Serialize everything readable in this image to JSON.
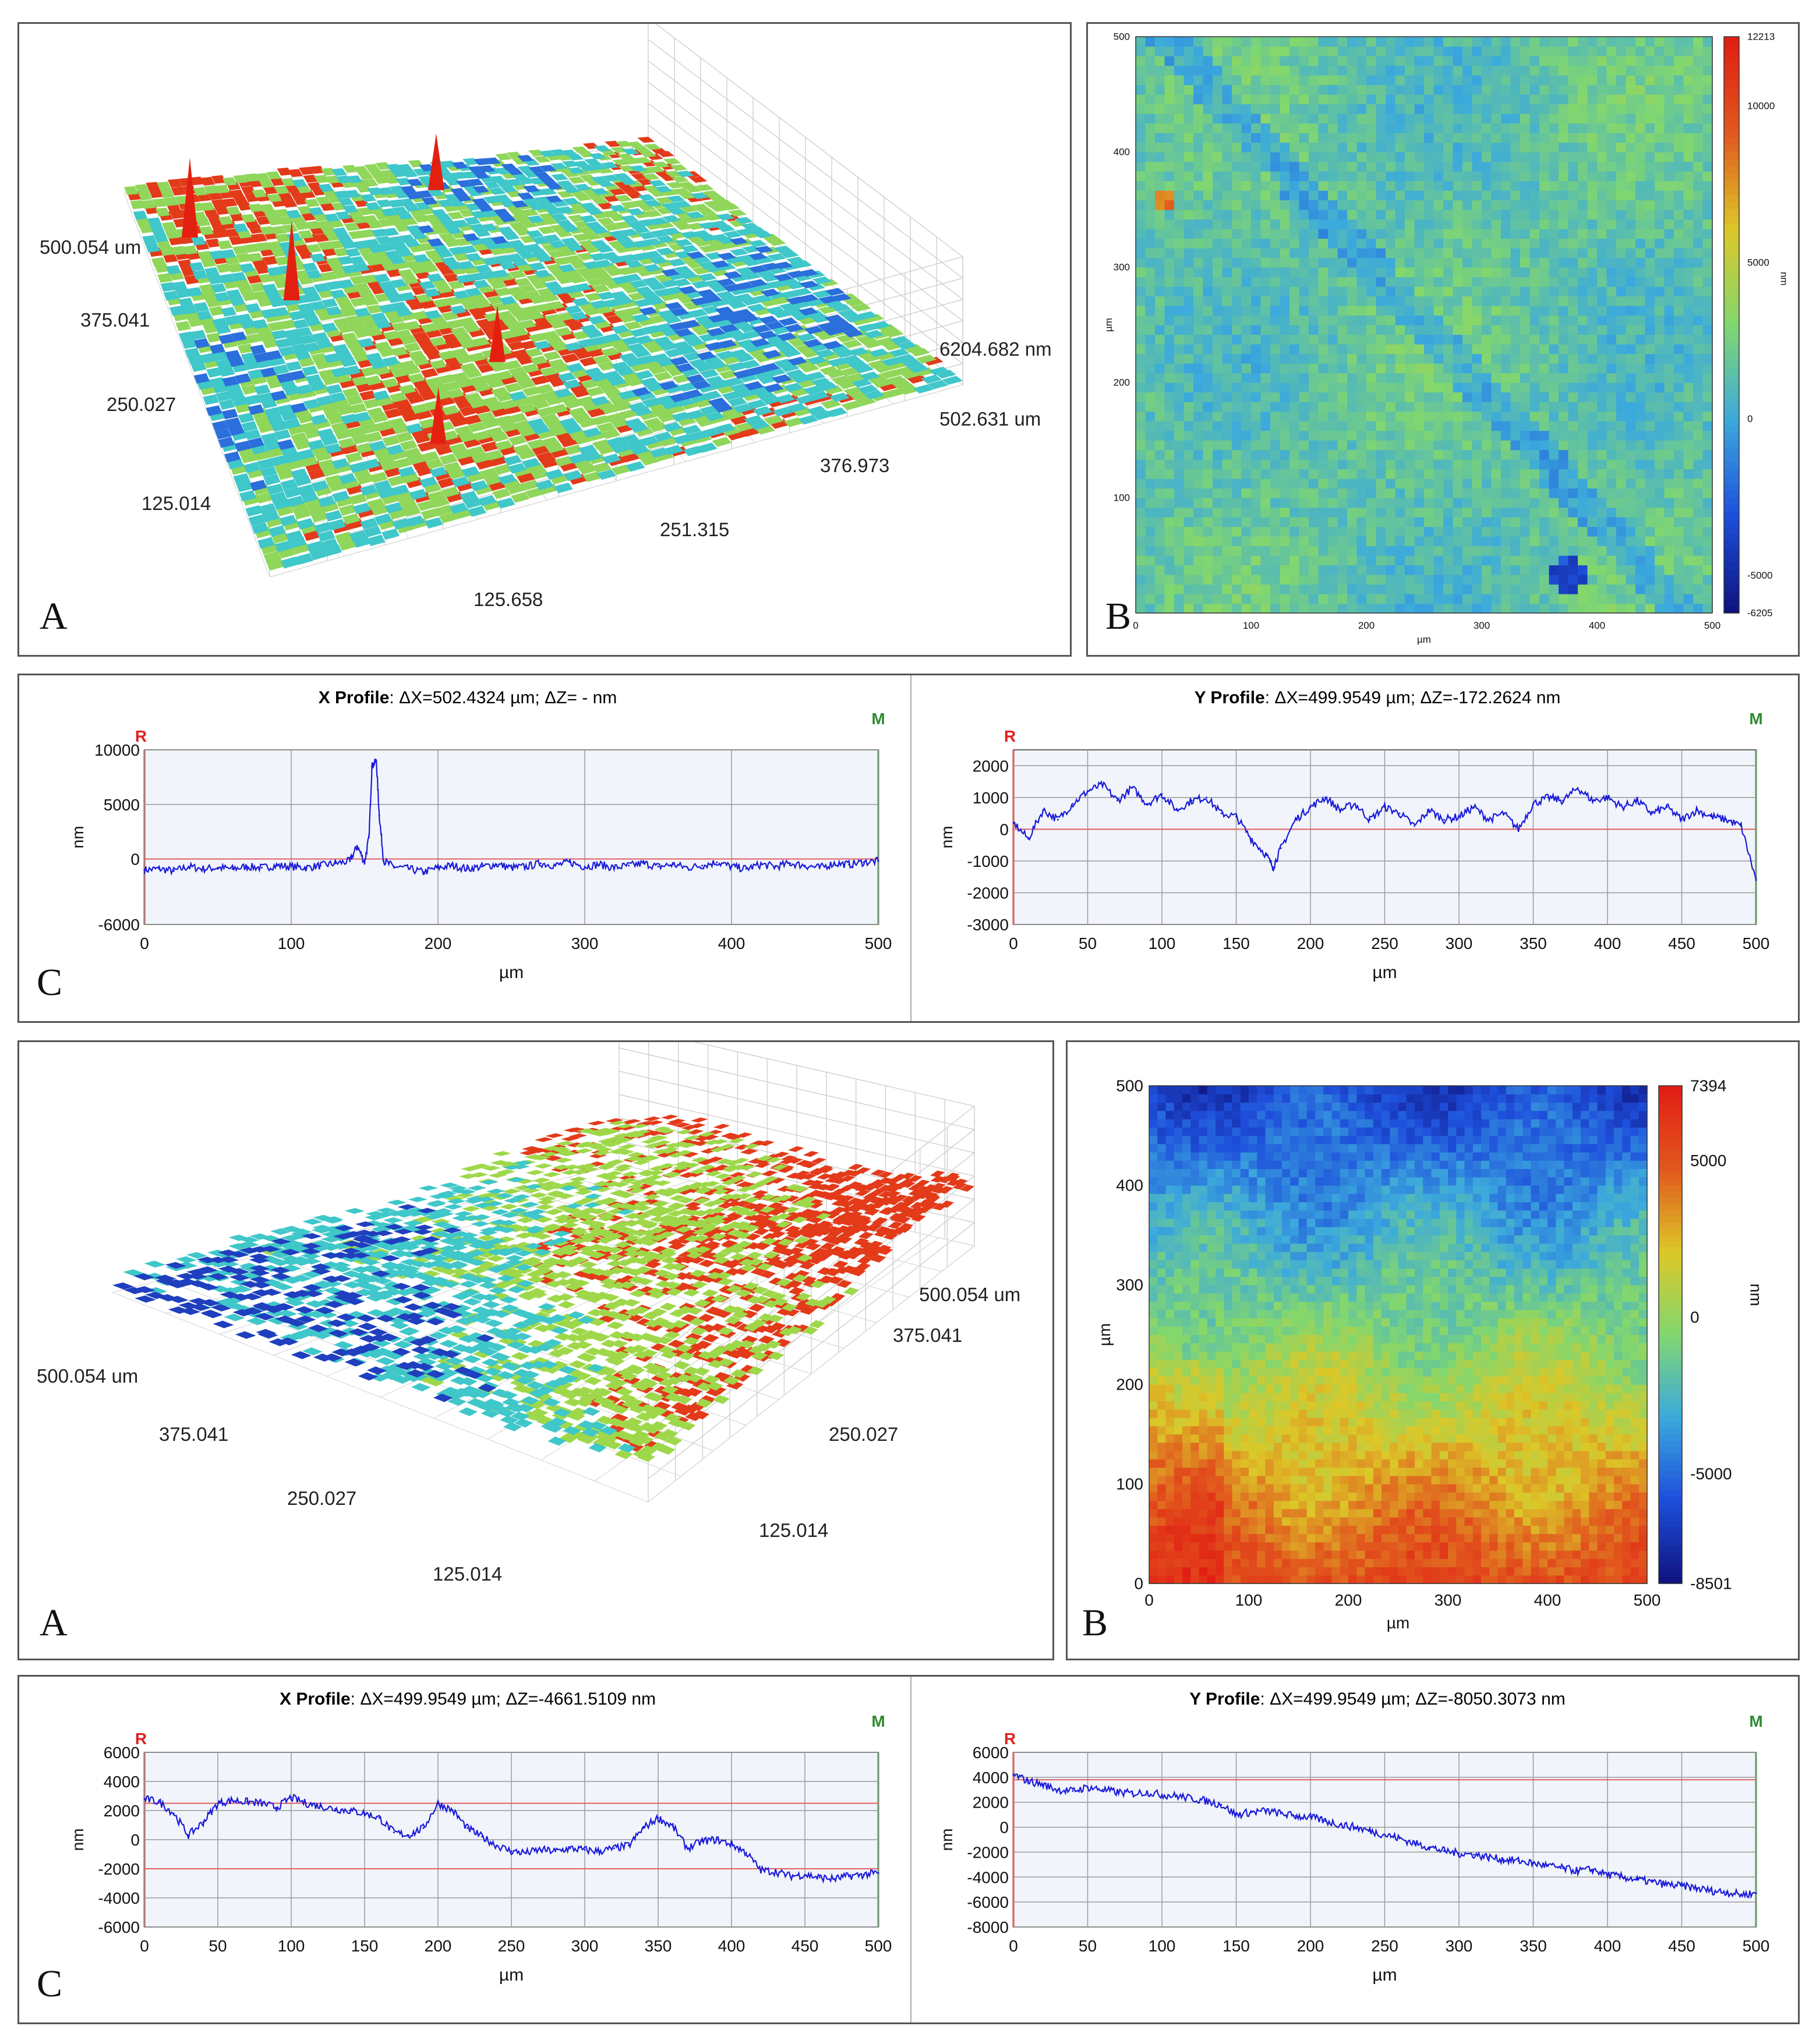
{
  "figure_letters": {
    "a": "A",
    "b": "B",
    "c": "C"
  },
  "chart_data": [
    {
      "id": "top-3d",
      "type": "surface3d",
      "x_ticks": [
        "125.658",
        "251.315",
        "376.973",
        "502.631 um"
      ],
      "y_ticks": [
        "125.014",
        "250.027",
        "375.041",
        "500.054 um"
      ],
      "z_label": "6204.682 nm",
      "colormap": [
        "#2a6fdb",
        "#3fc7c9",
        "#8fd65a",
        "#e33a1a"
      ]
    },
    {
      "id": "top-map",
      "type": "heatmap",
      "x_range": [
        0,
        500
      ],
      "y_range": [
        0,
        500
      ],
      "x_ticks": [
        "0",
        "100",
        "200",
        "300",
        "400",
        "500"
      ],
      "y_ticks": [
        "100",
        "200",
        "300",
        "400",
        "500"
      ],
      "xlabel": "µm",
      "ylabel": "µm",
      "colorbar_ticks": [
        "12213",
        "10000",
        "5000",
        "0",
        "-5000",
        "-6205"
      ],
      "colorbar_label": "nm",
      "colorbar_range": [
        -6205,
        12213
      ]
    },
    {
      "id": "top-x-profile",
      "type": "line",
      "title_bold": "X Profile",
      "title_rest": ": ΔX=502.4324 µm; ΔZ= -  nm",
      "marker_r": "R",
      "marker_m": "M",
      "xlabel": "µm",
      "ylabel": "nm",
      "x_range": [
        0,
        500
      ],
      "y_range": [
        -6000,
        10000
      ],
      "x_ticks": [
        "0",
        "100",
        "200",
        "300",
        "400",
        "500"
      ],
      "y_ticks": [
        {
          "v": 10000,
          "t": "10000"
        },
        {
          "v": 5000,
          "t": "5000"
        },
        {
          "v": 0,
          "t": "0"
        },
        {
          "v": -6000,
          "t": "-6000"
        }
      ],
      "ref_lines": [
        0
      ],
      "points": [
        [
          0,
          -1000
        ],
        [
          10,
          -900
        ],
        [
          20,
          -1100
        ],
        [
          30,
          -700
        ],
        [
          40,
          -900
        ],
        [
          50,
          -800
        ],
        [
          60,
          -900
        ],
        [
          70,
          -700
        ],
        [
          80,
          -800
        ],
        [
          90,
          -600
        ],
        [
          100,
          -700
        ],
        [
          110,
          -800
        ],
        [
          120,
          -600
        ],
        [
          130,
          -400
        ],
        [
          140,
          -200
        ],
        [
          145,
          1200
        ],
        [
          150,
          -300
        ],
        [
          153,
          2000
        ],
        [
          155,
          8500
        ],
        [
          158,
          9000
        ],
        [
          160,
          4000
        ],
        [
          163,
          -200
        ],
        [
          170,
          -700
        ],
        [
          180,
          -900
        ],
        [
          190,
          -1200
        ],
        [
          200,
          -800
        ],
        [
          210,
          -600
        ],
        [
          220,
          -900
        ],
        [
          230,
          -700
        ],
        [
          240,
          -500
        ],
        [
          250,
          -800
        ],
        [
          260,
          -700
        ],
        [
          270,
          -400
        ],
        [
          280,
          -600
        ],
        [
          290,
          -300
        ],
        [
          300,
          -700
        ],
        [
          310,
          -500
        ],
        [
          320,
          -800
        ],
        [
          330,
          -600
        ],
        [
          340,
          -400
        ],
        [
          350,
          -700
        ],
        [
          360,
          -500
        ],
        [
          370,
          -800
        ],
        [
          380,
          -600
        ],
        [
          390,
          -300
        ],
        [
          400,
          -700
        ],
        [
          410,
          -900
        ],
        [
          420,
          -500
        ],
        [
          430,
          -700
        ],
        [
          440,
          -400
        ],
        [
          450,
          -600
        ],
        [
          460,
          -800
        ],
        [
          470,
          -400
        ],
        [
          480,
          -500
        ],
        [
          490,
          -300
        ],
        [
          500,
          -200
        ]
      ]
    },
    {
      "id": "top-y-profile",
      "type": "line",
      "title_bold": "Y Profile",
      "title_rest": ": ΔX=499.9549 µm; ΔZ=-172.2624 nm",
      "marker_r": "R",
      "marker_m": "M",
      "xlabel": "µm",
      "ylabel": "nm",
      "x_range": [
        0,
        500
      ],
      "y_range": [
        -3000,
        2500
      ],
      "x_ticks": [
        "0",
        "50",
        "100",
        "150",
        "200",
        "250",
        "300",
        "350",
        "400",
        "450",
        "500"
      ],
      "y_ticks": [
        {
          "v": 2000,
          "t": "2000"
        },
        {
          "v": 1000,
          "t": "1000"
        },
        {
          "v": 0,
          "t": "0"
        },
        {
          "v": -1000,
          "t": "-1000"
        },
        {
          "v": -2000,
          "t": "-2000"
        },
        {
          "v": -3000,
          "t": "-3000"
        }
      ],
      "ref_lines": [
        0
      ],
      "points": [
        [
          0,
          200
        ],
        [
          10,
          -300
        ],
        [
          20,
          600
        ],
        [
          30,
          300
        ],
        [
          40,
          800
        ],
        [
          50,
          1200
        ],
        [
          60,
          1400
        ],
        [
          70,
          900
        ],
        [
          80,
          1300
        ],
        [
          90,
          800
        ],
        [
          100,
          1100
        ],
        [
          110,
          600
        ],
        [
          120,
          900
        ],
        [
          130,
          1000
        ],
        [
          140,
          500
        ],
        [
          150,
          400
        ],
        [
          160,
          -300
        ],
        [
          170,
          -800
        ],
        [
          175,
          -1200
        ],
        [
          180,
          -600
        ],
        [
          190,
          300
        ],
        [
          200,
          700
        ],
        [
          210,
          1000
        ],
        [
          220,
          600
        ],
        [
          230,
          800
        ],
        [
          240,
          300
        ],
        [
          250,
          700
        ],
        [
          260,
          500
        ],
        [
          270,
          100
        ],
        [
          280,
          600
        ],
        [
          290,
          300
        ],
        [
          300,
          400
        ],
        [
          310,
          700
        ],
        [
          320,
          300
        ],
        [
          330,
          500
        ],
        [
          340,
          0
        ],
        [
          350,
          800
        ],
        [
          360,
          1000
        ],
        [
          370,
          900
        ],
        [
          380,
          1300
        ],
        [
          390,
          900
        ],
        [
          400,
          1000
        ],
        [
          410,
          700
        ],
        [
          420,
          900
        ],
        [
          430,
          500
        ],
        [
          440,
          700
        ],
        [
          450,
          300
        ],
        [
          460,
          600
        ],
        [
          470,
          400
        ],
        [
          480,
          300
        ],
        [
          490,
          100
        ],
        [
          500,
          -1600
        ]
      ]
    },
    {
      "id": "bottom-3d",
      "type": "surface3d",
      "x_ticks": [
        "125.014",
        "250.027",
        "375.041",
        "500.054 um"
      ],
      "y_ticks": [
        "125.014",
        "250.027",
        "375.041",
        "500.054 um"
      ],
      "colormap": [
        "#1f3fbf",
        "#3fc7c9",
        "#9ed84a",
        "#e33a1a"
      ]
    },
    {
      "id": "bottom-map",
      "type": "heatmap",
      "x_range": [
        0,
        500
      ],
      "y_range": [
        0,
        500
      ],
      "x_ticks": [
        "0",
        "100",
        "200",
        "300",
        "400",
        "500"
      ],
      "y_ticks": [
        "0",
        "100",
        "200",
        "300",
        "400",
        "500"
      ],
      "xlabel": "µm",
      "ylabel": "µm",
      "colorbar_ticks": [
        "7394",
        "5000",
        "0",
        "-5000",
        "-8501"
      ],
      "colorbar_label": "nm",
      "colorbar_range": [
        -8501,
        7394
      ]
    },
    {
      "id": "bottom-x-profile",
      "type": "line",
      "title_bold": "X Profile",
      "title_rest": ": ΔX=499.9549 µm; ΔZ=-4661.5109 nm",
      "marker_r": "R",
      "marker_m": "M",
      "xlabel": "µm",
      "ylabel": "nm",
      "x_range": [
        0,
        500
      ],
      "y_range": [
        -6000,
        6000
      ],
      "x_ticks": [
        "0",
        "50",
        "100",
        "150",
        "200",
        "250",
        "300",
        "350",
        "400",
        "450",
        "500"
      ],
      "y_ticks": [
        {
          "v": 6000,
          "t": "6000"
        },
        {
          "v": 4000,
          "t": "4000"
        },
        {
          "v": 2000,
          "t": "2000"
        },
        {
          "v": 0,
          "t": "0"
        },
        {
          "v": -2000,
          "t": "-2000"
        },
        {
          "v": -4000,
          "t": "-4000"
        },
        {
          "v": -6000,
          "t": "-6000"
        }
      ],
      "ref_lines": [
        2500,
        -2000
      ],
      "points": [
        [
          0,
          2800
        ],
        [
          10,
          2600
        ],
        [
          20,
          1800
        ],
        [
          30,
          300
        ],
        [
          40,
          1200
        ],
        [
          50,
          2500
        ],
        [
          60,
          2700
        ],
        [
          70,
          2600
        ],
        [
          80,
          2500
        ],
        [
          90,
          2200
        ],
        [
          100,
          2900
        ],
        [
          110,
          2500
        ],
        [
          120,
          2300
        ],
        [
          130,
          2100
        ],
        [
          140,
          2000
        ],
        [
          150,
          1800
        ],
        [
          160,
          1500
        ],
        [
          170,
          500
        ],
        [
          180,
          300
        ],
        [
          190,
          800
        ],
        [
          200,
          2500
        ],
        [
          210,
          2000
        ],
        [
          220,
          800
        ],
        [
          230,
          200
        ],
        [
          240,
          -400
        ],
        [
          250,
          -800
        ],
        [
          260,
          -900
        ],
        [
          270,
          -700
        ],
        [
          280,
          -800
        ],
        [
          290,
          -600
        ],
        [
          300,
          -700
        ],
        [
          310,
          -800
        ],
        [
          320,
          -600
        ],
        [
          330,
          -400
        ],
        [
          340,
          800
        ],
        [
          350,
          1500
        ],
        [
          360,
          900
        ],
        [
          370,
          -600
        ],
        [
          380,
          -100
        ],
        [
          390,
          0
        ],
        [
          400,
          -300
        ],
        [
          410,
          -900
        ],
        [
          420,
          -2100
        ],
        [
          430,
          -2200
        ],
        [
          440,
          -2500
        ],
        [
          450,
          -2400
        ],
        [
          460,
          -2600
        ],
        [
          470,
          -2700
        ],
        [
          480,
          -2500
        ],
        [
          490,
          -2400
        ],
        [
          500,
          -2300
        ]
      ]
    },
    {
      "id": "bottom-y-profile",
      "type": "line",
      "title_bold": "Y Profile",
      "title_rest": ": ΔX=499.9549 µm; ΔZ=-8050.3073 nm",
      "marker_r": "R",
      "marker_m": "M",
      "xlabel": "µm",
      "ylabel": "nm",
      "x_range": [
        0,
        500
      ],
      "y_range": [
        -8000,
        6000
      ],
      "x_ticks": [
        "0",
        "50",
        "100",
        "150",
        "200",
        "250",
        "300",
        "350",
        "400",
        "450",
        "500"
      ],
      "y_ticks": [
        {
          "v": 6000,
          "t": "6000"
        },
        {
          "v": 4000,
          "t": "4000"
        },
        {
          "v": 2000,
          "t": "2000"
        },
        {
          "v": 0,
          "t": "0"
        },
        {
          "v": -2000,
          "t": "-2000"
        },
        {
          "v": -4000,
          "t": "-4000"
        },
        {
          "v": -6000,
          "t": "-6000"
        },
        {
          "v": -8000,
          "t": "-8000"
        }
      ],
      "ref_lines": [
        3800
      ],
      "points": [
        [
          0,
          4200
        ],
        [
          10,
          3700
        ],
        [
          20,
          3400
        ],
        [
          30,
          3000
        ],
        [
          40,
          2900
        ],
        [
          50,
          3200
        ],
        [
          60,
          3000
        ],
        [
          70,
          2800
        ],
        [
          80,
          2700
        ],
        [
          90,
          2800
        ],
        [
          100,
          2600
        ],
        [
          110,
          2500
        ],
        [
          120,
          2300
        ],
        [
          130,
          2100
        ],
        [
          140,
          1800
        ],
        [
          150,
          1000
        ],
        [
          160,
          1200
        ],
        [
          170,
          1300
        ],
        [
          180,
          1100
        ],
        [
          190,
          900
        ],
        [
          200,
          800
        ],
        [
          210,
          500
        ],
        [
          220,
          200
        ],
        [
          230,
          0
        ],
        [
          240,
          -300
        ],
        [
          250,
          -600
        ],
        [
          260,
          -900
        ],
        [
          270,
          -1300
        ],
        [
          280,
          -1600
        ],
        [
          290,
          -1900
        ],
        [
          300,
          -2100
        ],
        [
          310,
          -2200
        ],
        [
          320,
          -2400
        ],
        [
          330,
          -2600
        ],
        [
          340,
          -2700
        ],
        [
          350,
          -2900
        ],
        [
          360,
          -3100
        ],
        [
          370,
          -3300
        ],
        [
          380,
          -3500
        ],
        [
          390,
          -3400
        ],
        [
          400,
          -3800
        ],
        [
          410,
          -4000
        ],
        [
          420,
          -4200
        ],
        [
          430,
          -4400
        ],
        [
          440,
          -4600
        ],
        [
          450,
          -4700
        ],
        [
          460,
          -4900
        ],
        [
          470,
          -5100
        ],
        [
          480,
          -5200
        ],
        [
          490,
          -5400
        ],
        [
          500,
          -5300
        ]
      ]
    }
  ]
}
